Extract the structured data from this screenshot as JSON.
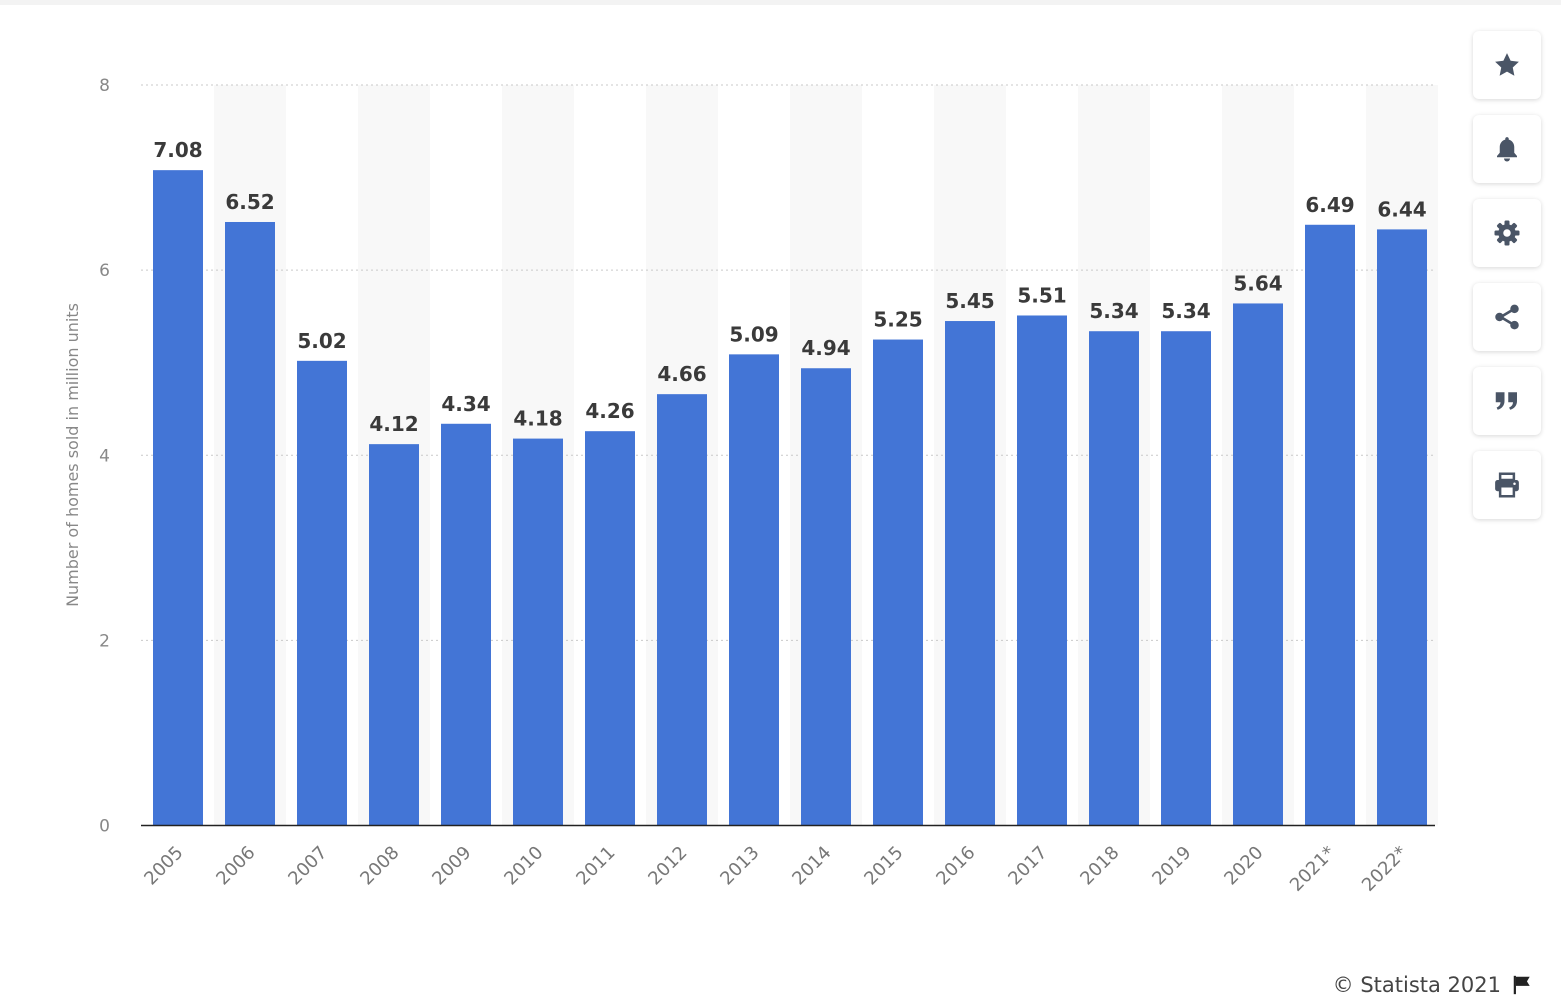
{
  "chart_data": {
    "type": "bar",
    "categories": [
      "2005",
      "2006",
      "2007",
      "2008",
      "2009",
      "2010",
      "2011",
      "2012",
      "2013",
      "2014",
      "2015",
      "2016",
      "2017",
      "2018",
      "2019",
      "2020",
      "2021*",
      "2022*"
    ],
    "values": [
      7.08,
      6.52,
      5.02,
      4.12,
      4.34,
      4.18,
      4.26,
      4.66,
      5.09,
      4.94,
      5.25,
      5.45,
      5.51,
      5.34,
      5.34,
      5.64,
      6.49,
      6.44
    ],
    "value_labels": [
      "7.08",
      "6.52",
      "5.02",
      "4.12",
      "4.34",
      "4.18",
      "4.26",
      "4.66",
      "5.09",
      "4.94",
      "5.25",
      "5.45",
      "5.51",
      "5.34",
      "5.34",
      "5.64",
      "6.49",
      "6.44"
    ],
    "ylabel": "Number of homes sold in million units",
    "ylim": [
      0,
      8
    ],
    "yticks": [
      0,
      2,
      4,
      6,
      8
    ],
    "ytick_labels": [
      "0",
      "2",
      "4",
      "6",
      "8"
    ],
    "grid": true,
    "bar_color": "#4375d6",
    "stripe_color": "#f8f8f8"
  },
  "sidebar": {
    "buttons": [
      {
        "name": "favorite",
        "icon": "star-icon"
      },
      {
        "name": "notifications",
        "icon": "bell-icon"
      },
      {
        "name": "settings",
        "icon": "gear-icon"
      },
      {
        "name": "share",
        "icon": "share-icon"
      },
      {
        "name": "cite",
        "icon": "quote-icon"
      },
      {
        "name": "print",
        "icon": "print-icon"
      }
    ],
    "icon_color": "#4a5566"
  },
  "footer": {
    "copyright": "© Statista 2021",
    "flag_icon": "flag-icon"
  }
}
